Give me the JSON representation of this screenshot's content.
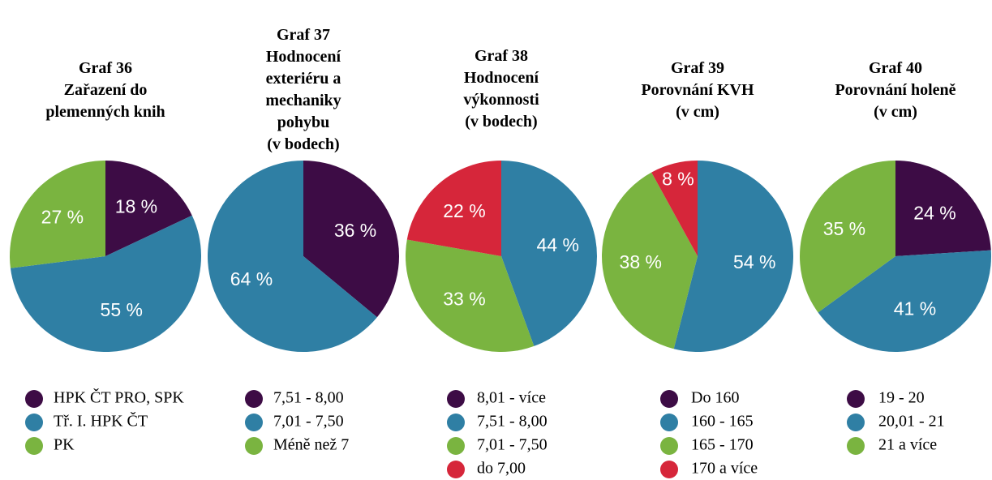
{
  "chart_data": [
    {
      "type": "pie",
      "title": [
        "Graf  36",
        "Zařazení do",
        "plemenných knih"
      ],
      "categories": [
        "HPK ČT PRO, SPK",
        "Tř. I. HPK ČT",
        "PK"
      ],
      "values": [
        18,
        55,
        27
      ],
      "value_labels": [
        "18 %",
        "55 %",
        "27 %"
      ],
      "colors": [
        "#3d0c45",
        "#2f7fa4",
        "#7ab440"
      ]
    },
    {
      "type": "pie",
      "title": [
        "Graf  37",
        "Hodnocení",
        "exteriéru a",
        "mechaniky",
        "pohybu",
        "(v bodech)"
      ],
      "categories": [
        "7,51 - 8,00",
        "7,01 - 7,50",
        "Méně než 7"
      ],
      "values": [
        36,
        64,
        0
      ],
      "value_labels": [
        "36 %",
        "64 %",
        null
      ],
      "colors": [
        "#3d0c45",
        "#2f7fa4",
        "#7ab440"
      ]
    },
    {
      "type": "pie",
      "title": [
        "Graf  38",
        "Hodnocení",
        "výkonnosti",
        "(v bodech)"
      ],
      "categories": [
        "8,01 - více",
        "7,51 - 8,00",
        "7,01 - 7,50",
        "do 7,00"
      ],
      "values": [
        0,
        44,
        33,
        22
      ],
      "value_labels": [
        null,
        "44 %",
        "33 %",
        "22 %"
      ],
      "colors": [
        "#3d0c45",
        "#2f7fa4",
        "#7ab440",
        "#d6263a"
      ]
    },
    {
      "type": "pie",
      "title": [
        "Graf  39",
        "Porovnání KVH",
        "(v cm)"
      ],
      "categories": [
        "Do 160",
        "160 - 165",
        "165 - 170",
        "170 a více"
      ],
      "values": [
        0,
        54,
        38,
        8
      ],
      "value_labels": [
        null,
        "54 %",
        "38 %",
        "8 %"
      ],
      "colors": [
        "#3d0c45",
        "#2f7fa4",
        "#7ab440",
        "#d6263a"
      ]
    },
    {
      "type": "pie",
      "title": [
        "Graf  40",
        "Porovnání holeně",
        "(v cm)"
      ],
      "categories": [
        "19 - 20",
        "20,01 - 21",
        "21 a více"
      ],
      "values": [
        24,
        41,
        35
      ],
      "value_labels": [
        "24 %",
        "41 %",
        "35 %"
      ],
      "colors": [
        "#3d0c45",
        "#2f7fa4",
        "#7ab440"
      ]
    }
  ]
}
